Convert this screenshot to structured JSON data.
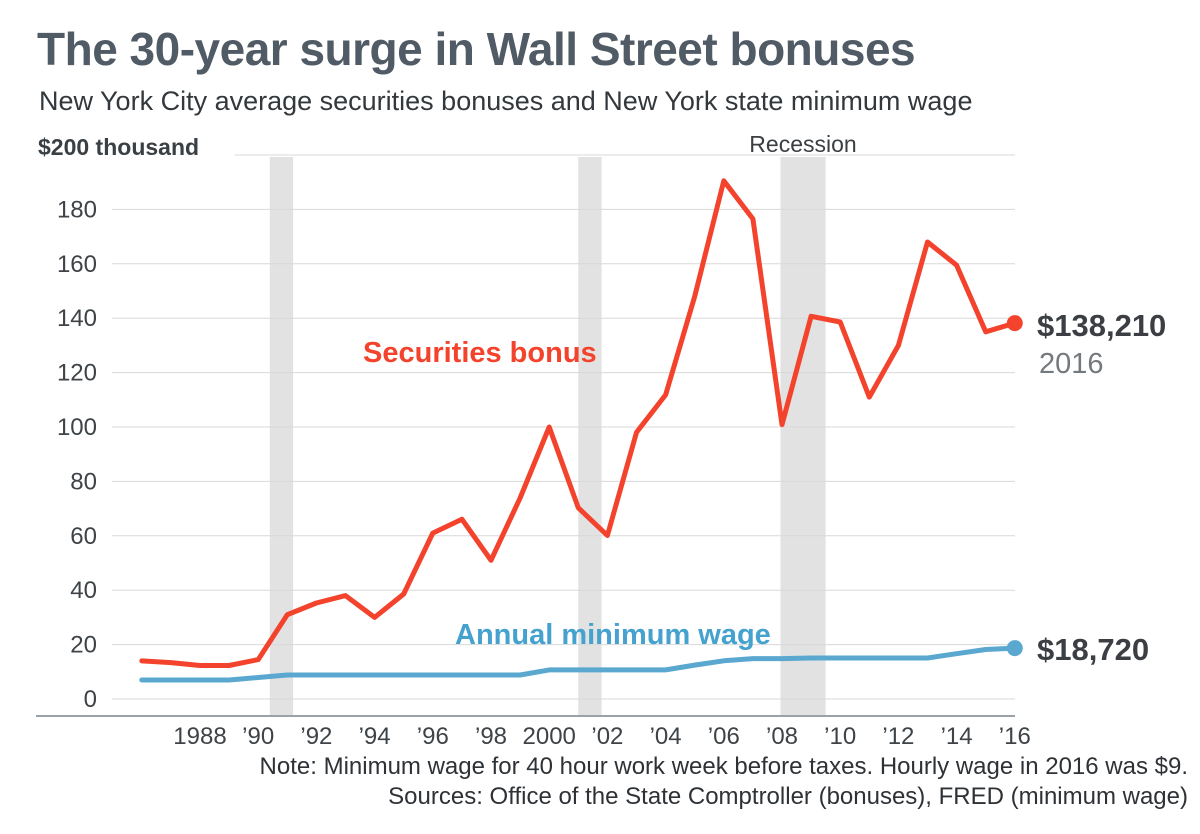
{
  "header": {
    "title": "The 30-year surge in Wall Street bonuses",
    "subtitle": "New York City average securities bonuses and New York state minimum wage"
  },
  "chart_data": {
    "type": "line",
    "title": "The 30-year surge in Wall Street bonuses",
    "subtitle": "New York City average securities bonuses and New York state minimum wage",
    "unit": "thousand dollars per year",
    "x": [
      1986,
      1987,
      1988,
      1989,
      1990,
      1991,
      1992,
      1993,
      1994,
      1995,
      1996,
      1997,
      1998,
      1999,
      2000,
      2001,
      2002,
      2003,
      2004,
      2005,
      2006,
      2007,
      2008,
      2009,
      2010,
      2011,
      2012,
      2013,
      2014,
      2015,
      2016
    ],
    "series": [
      {
        "name": "Securities bonus",
        "color": "#f4432c",
        "values": [
          14,
          13.4,
          12.3,
          12.3,
          14.5,
          31,
          35.3,
          38,
          30,
          38.6,
          61,
          66.1,
          51,
          73.9,
          100,
          70.3,
          60.1,
          98,
          111.8,
          148,
          190.5,
          176.5,
          100.9,
          140.7,
          138.6,
          111,
          130,
          168,
          159.5,
          135,
          138.21
        ],
        "end_label": "$138,210",
        "end_year_label": "2016"
      },
      {
        "name": "Annual minimum wage",
        "color": "#5aa8d0",
        "values": [
          6.97,
          6.97,
          6.97,
          6.97,
          7.9,
          8.84,
          8.84,
          8.84,
          8.84,
          8.84,
          8.84,
          8.84,
          8.84,
          8.84,
          10.71,
          10.71,
          10.71,
          10.71,
          10.71,
          12.48,
          14.04,
          14.87,
          14.87,
          15.08,
          15.08,
          15.08,
          15.08,
          15.08,
          16.64,
          18.2,
          18.72
        ],
        "end_label": "$18,720"
      }
    ],
    "y_axis": {
      "top_label": "$200 thousand",
      "ticks": [
        0,
        20,
        40,
        60,
        80,
        100,
        120,
        140,
        160,
        180
      ],
      "min": 0,
      "max": 200
    },
    "x_axis": {
      "tick_years": [
        1988,
        1990,
        1992,
        1994,
        1996,
        1998,
        2000,
        2002,
        2004,
        2006,
        2008,
        2010,
        2012,
        2014,
        2016
      ],
      "tick_labels": [
        "1988",
        "’90",
        "’92",
        "’94",
        "’96",
        "’98",
        "2000",
        "’02",
        "’04",
        "’06",
        "’08",
        "’10",
        "’12",
        "’14",
        "’16"
      ]
    },
    "recessions": {
      "label": "Recession",
      "bands": [
        [
          1990.4,
          1991.2
        ],
        [
          2001.0,
          2001.8
        ],
        [
          2007.95,
          2009.5
        ]
      ]
    },
    "colors": {
      "grid": "#d8d8d8",
      "band": "#e2e2e2",
      "axis": "#9aa1a7",
      "tick_text": "#3e4347"
    }
  },
  "footer": {
    "note": "Note: Minimum wage for 40 hour work week before taxes. Hourly wage in 2016 was $9.",
    "sources": "Sources: Office of the State Comptroller (bonuses), FRED (minimum wage)"
  }
}
